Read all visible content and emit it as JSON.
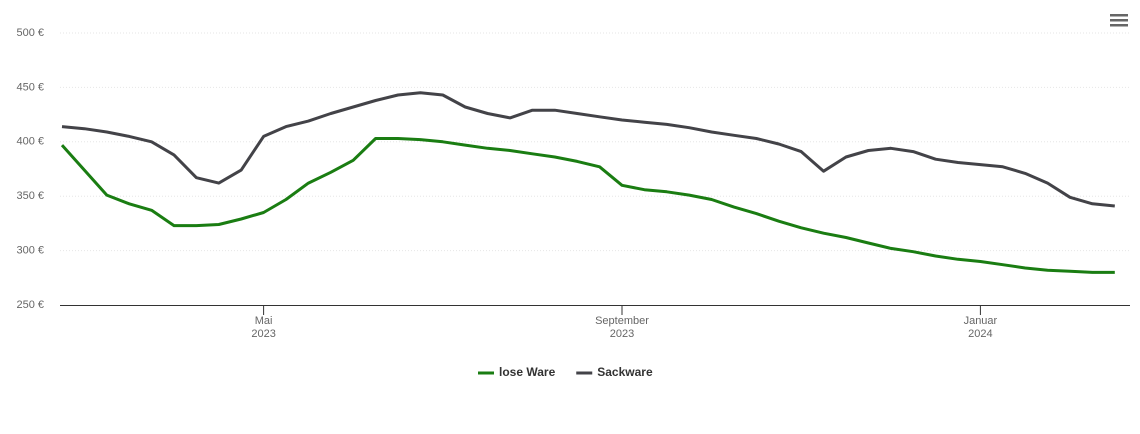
{
  "chart_data": {
    "type": "line",
    "categories": [
      null,
      null,
      null,
      null,
      null,
      null,
      null,
      null,
      null,
      "Mai 2023",
      null,
      null,
      null,
      null,
      null,
      null,
      null,
      null,
      null,
      null,
      null,
      null,
      null,
      null,
      null,
      "September 2023",
      null,
      null,
      null,
      null,
      null,
      null,
      null,
      null,
      null,
      null,
      null,
      null,
      null,
      null,
      null,
      "Januar 2024",
      null,
      null,
      null,
      null,
      null,
      null
    ],
    "series": [
      {
        "name": "lose Ware",
        "color": "#1a7d12",
        "values": [
          397,
          374,
          351,
          343,
          337,
          323,
          323,
          324,
          329,
          335,
          347,
          362,
          372,
          383,
          403,
          403,
          402,
          400,
          397,
          394,
          392,
          389,
          386,
          382,
          377,
          360,
          356,
          354,
          351,
          347,
          340,
          334,
          327,
          321,
          316,
          312,
          307,
          302,
          299,
          295,
          292,
          290,
          287,
          284,
          282,
          281,
          280,
          280
        ]
      },
      {
        "name": "Sackware",
        "color": "#434348",
        "values": [
          414,
          412,
          409,
          405,
          400,
          388,
          367,
          362,
          374,
          405,
          414,
          419,
          426,
          432,
          438,
          443,
          445,
          443,
          432,
          426,
          422,
          429,
          429,
          426,
          423,
          420,
          418,
          416,
          413,
          409,
          406,
          403,
          398,
          391,
          373,
          386,
          392,
          394,
          391,
          384,
          381,
          379,
          377,
          371,
          362,
          349,
          343,
          341
        ]
      }
    ],
    "ylim": [
      250,
      500
    ],
    "yticks": [
      {
        "value": 250,
        "label": "250 €"
      },
      {
        "value": 300,
        "label": "300 €"
      },
      {
        "value": 350,
        "label": "350 €"
      },
      {
        "value": 400,
        "label": "400 €"
      },
      {
        "value": 450,
        "label": "450 €"
      },
      {
        "value": 500,
        "label": "500 €"
      }
    ],
    "grid": true
  }
}
